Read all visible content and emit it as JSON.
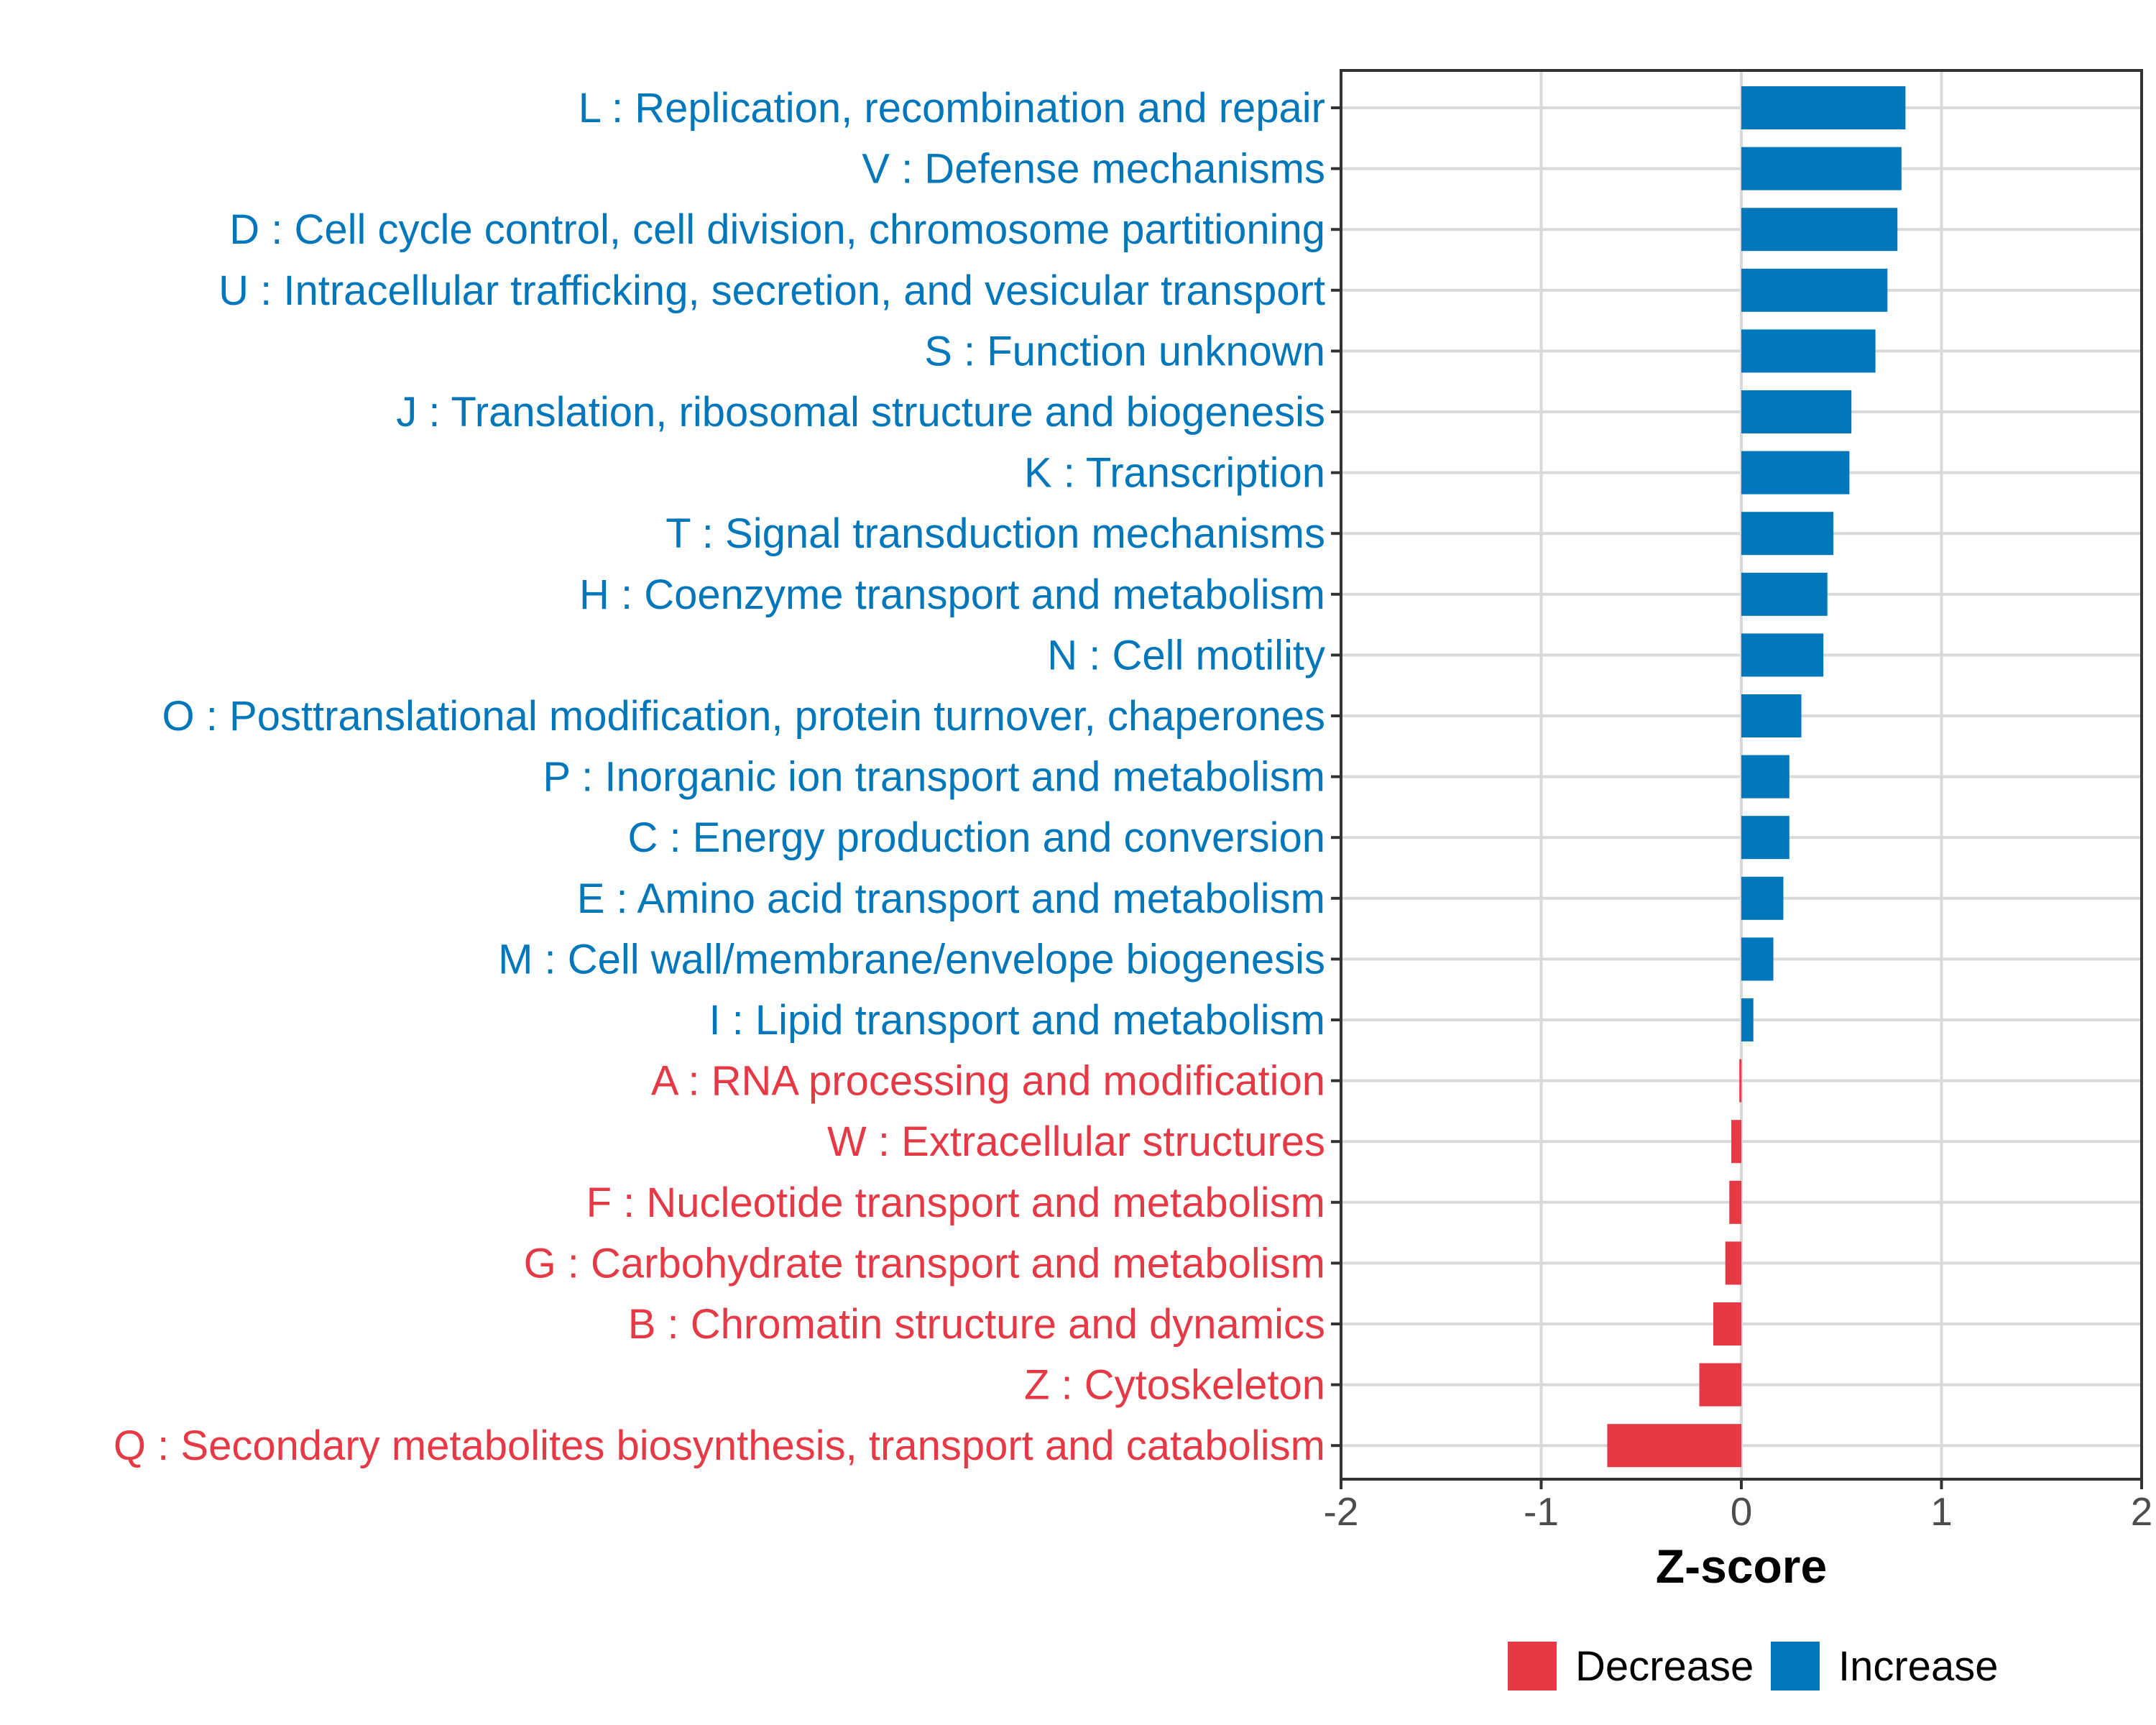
{
  "chart_data": {
    "type": "bar",
    "orientation": "horizontal",
    "xlabel": "Z-score",
    "ylabel": "",
    "xlim": [
      -2,
      2
    ],
    "xticks": [
      -2,
      -1,
      0,
      1,
      2
    ],
    "grid": true,
    "legend_position": "bottom",
    "colors": {
      "Decrease": "#E63946",
      "Increase": "#0077BB"
    },
    "legend": [
      {
        "name": "Decrease",
        "color": "#E63946"
      },
      {
        "name": "Increase",
        "color": "#0077BB"
      }
    ],
    "categories": [
      "L : Replication, recombination and repair",
      "V : Defense mechanisms",
      "D : Cell cycle control, cell division, chromosome partitioning",
      "U : Intracellular trafficking, secretion, and vesicular transport",
      "S : Function unknown",
      "J : Translation, ribosomal structure and biogenesis",
      "K : Transcription",
      "T : Signal transduction mechanisms",
      "H : Coenzyme transport and metabolism",
      "N : Cell motility",
      "O : Posttranslational modification, protein turnover, chaperones",
      "P : Inorganic ion transport and metabolism",
      "C : Energy production and conversion",
      "E : Amino acid transport and metabolism",
      "M : Cell wall/membrane/envelope biogenesis",
      "I : Lipid transport and metabolism",
      "A : RNA processing and modification",
      "W : Extracellular structures",
      "F : Nucleotide transport and metabolism",
      "G : Carbohydrate transport and metabolism",
      "B : Chromatin structure and dynamics",
      "Z : Cytoskeleton",
      "Q : Secondary metabolites biosynthesis, transport and catabolism"
    ],
    "values": [
      0.82,
      0.8,
      0.78,
      0.73,
      0.67,
      0.55,
      0.54,
      0.46,
      0.43,
      0.41,
      0.3,
      0.24,
      0.24,
      0.21,
      0.16,
      0.06,
      -0.01,
      -0.05,
      -0.06,
      -0.08,
      -0.14,
      -0.21,
      -0.67
    ],
    "groups": [
      "Increase",
      "Increase",
      "Increase",
      "Increase",
      "Increase",
      "Increase",
      "Increase",
      "Increase",
      "Increase",
      "Increase",
      "Increase",
      "Increase",
      "Increase",
      "Increase",
      "Increase",
      "Increase",
      "Decrease",
      "Decrease",
      "Decrease",
      "Decrease",
      "Decrease",
      "Decrease",
      "Decrease"
    ]
  }
}
